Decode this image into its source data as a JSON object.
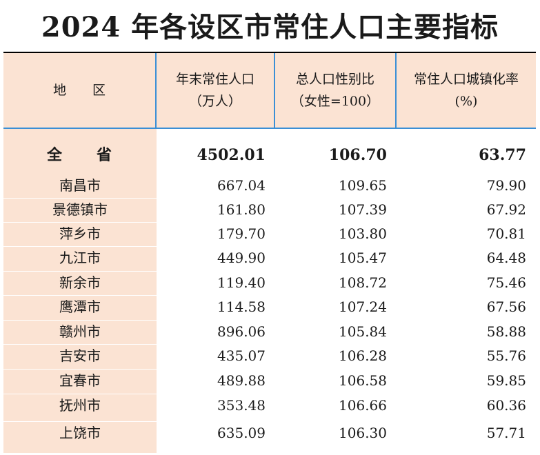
{
  "title": "2024 年各设区市常住人口主要指标",
  "headers": {
    "region": "地　　区",
    "pop_line1": "年末常住人口",
    "pop_line2": "（万人）",
    "ratio_line1": "总人口性别比",
    "ratio_line2": "（女性=100）",
    "urban_line1": "常住人口城镇化率",
    "urban_line2": "(%)"
  },
  "total": {
    "name": "全　　省",
    "population": "4502.01",
    "sex_ratio": "106.70",
    "urbanization": "63.77"
  },
  "rows": [
    {
      "name": "南昌市",
      "population": "667.04",
      "sex_ratio": "109.65",
      "urbanization": "79.90"
    },
    {
      "name": "景德镇市",
      "population": "161.80",
      "sex_ratio": "107.39",
      "urbanization": "67.92"
    },
    {
      "name": "萍乡市",
      "population": "179.70",
      "sex_ratio": "103.80",
      "urbanization": "70.81"
    },
    {
      "name": "九江市",
      "population": "449.90",
      "sex_ratio": "105.47",
      "urbanization": "64.48"
    },
    {
      "name": "新余市",
      "population": "119.40",
      "sex_ratio": "108.72",
      "urbanization": "75.46"
    },
    {
      "name": "鹰潭市",
      "population": "114.58",
      "sex_ratio": "107.24",
      "urbanization": "67.56"
    },
    {
      "name": "赣州市",
      "population": "896.06",
      "sex_ratio": "105.84",
      "urbanization": "58.88"
    },
    {
      "name": "吉安市",
      "population": "435.07",
      "sex_ratio": "106.28",
      "urbanization": "55.76"
    },
    {
      "name": "宜春市",
      "population": "489.88",
      "sex_ratio": "106.58",
      "urbanization": "59.85"
    },
    {
      "name": "抚州市",
      "population": "353.48",
      "sex_ratio": "106.66",
      "urbanization": "60.36"
    },
    {
      "name": "上饶市",
      "population": "635.09",
      "sex_ratio": "106.30",
      "urbanization": "57.71"
    }
  ]
}
